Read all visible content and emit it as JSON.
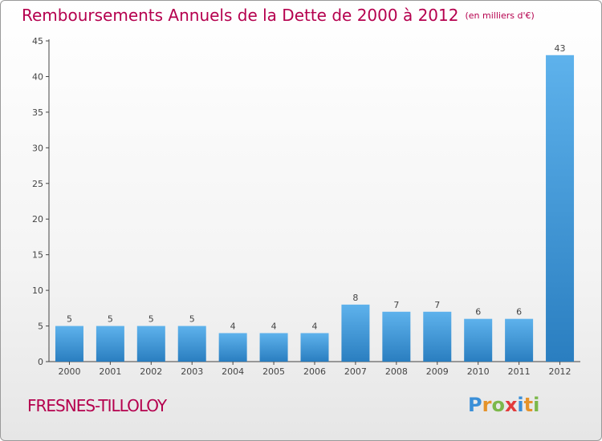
{
  "title": "Remboursements Annuels de la Dette de 2000 à 2012",
  "unit": "(en milliers d'€)",
  "commune": "FRESNES-TILLOLOY",
  "logo": {
    "letters": [
      "P",
      "r",
      "o",
      "x",
      "i",
      "t",
      "i"
    ],
    "colors": [
      "#3a8fd8",
      "#e5932a",
      "#7cb84a",
      "#e23b3b",
      "#3a8fd8",
      "#e5932a",
      "#7cb84a"
    ]
  },
  "colors": {
    "bar_top": "#5eb2ec",
    "bar_bottom": "#2a7ec0",
    "title": "#b5004e"
  },
  "chart_data": {
    "type": "bar",
    "title": "Remboursements Annuels de la Dette de 2000 à 2012",
    "xlabel": "",
    "ylabel": "",
    "categories": [
      "2000",
      "2001",
      "2002",
      "2003",
      "2004",
      "2005",
      "2006",
      "2007",
      "2008",
      "2009",
      "2010",
      "2011",
      "2012"
    ],
    "values": [
      5,
      5,
      5,
      5,
      4,
      4,
      4,
      8,
      7,
      7,
      6,
      6,
      43
    ],
    "value_labels": [
      "5",
      "5",
      "5",
      "5",
      "4",
      "4",
      "4",
      "8",
      "7",
      "7",
      "6",
      "6",
      "43"
    ],
    "ylim": [
      0,
      45
    ],
    "yticks": [
      0,
      5,
      10,
      15,
      20,
      25,
      30,
      35,
      40,
      45
    ],
    "ytick_labels": [
      "0",
      "5",
      "10",
      "15",
      "20",
      "25",
      "30",
      "35",
      "40",
      "45"
    ],
    "grid": false
  }
}
